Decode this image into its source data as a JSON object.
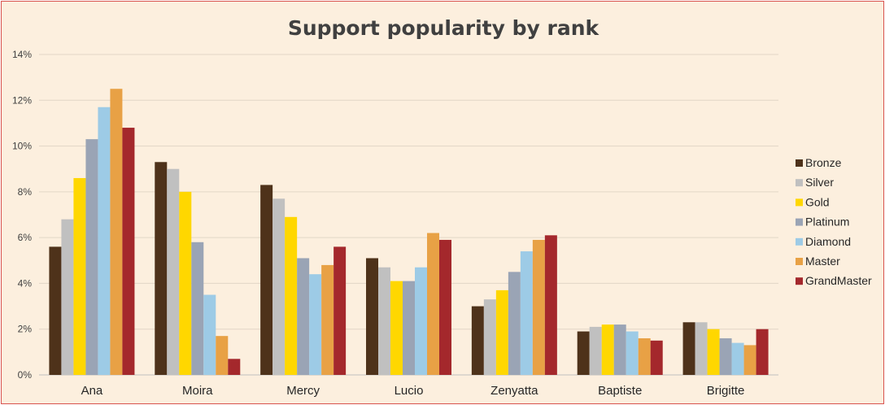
{
  "chart_data": {
    "type": "bar",
    "title": "Support popularity by rank",
    "xlabel": "",
    "ylabel": "",
    "ylim": [
      0,
      14
    ],
    "yticks": [
      0,
      2,
      4,
      6,
      8,
      10,
      12,
      14
    ],
    "ytick_labels": [
      "0%",
      "2%",
      "4%",
      "6%",
      "8%",
      "10%",
      "12%",
      "14%"
    ],
    "grid": true,
    "legend_position": "right",
    "categories": [
      "Ana",
      "Moira",
      "Mercy",
      "Lucio",
      "Zenyatta",
      "Baptiste",
      "Brigitte"
    ],
    "series": [
      {
        "name": "Bronze",
        "color": "#4e321a",
        "values": [
          5.6,
          9.3,
          8.3,
          5.1,
          3.0,
          1.9,
          2.3
        ]
      },
      {
        "name": "Silver",
        "color": "#c0c0c0",
        "values": [
          6.8,
          9.0,
          7.7,
          4.7,
          3.3,
          2.1,
          2.3
        ]
      },
      {
        "name": "Gold",
        "color": "#ffd700",
        "values": [
          8.6,
          8.0,
          6.9,
          4.1,
          3.7,
          2.2,
          2.0
        ]
      },
      {
        "name": "Platinum",
        "color": "#9aa4b5",
        "values": [
          10.3,
          5.8,
          5.1,
          4.1,
          4.5,
          2.2,
          1.6
        ]
      },
      {
        "name": "Diamond",
        "color": "#9dcbe6",
        "values": [
          11.7,
          3.5,
          4.4,
          4.7,
          5.4,
          1.9,
          1.4
        ]
      },
      {
        "name": "Master",
        "color": "#e8a145",
        "values": [
          12.5,
          1.7,
          4.8,
          6.2,
          5.9,
          1.6,
          1.3
        ]
      },
      {
        "name": "GrandMaster",
        "color": "#a4282c",
        "values": [
          10.8,
          0.7,
          5.6,
          5.9,
          6.1,
          1.5,
          2.0
        ]
      }
    ]
  }
}
